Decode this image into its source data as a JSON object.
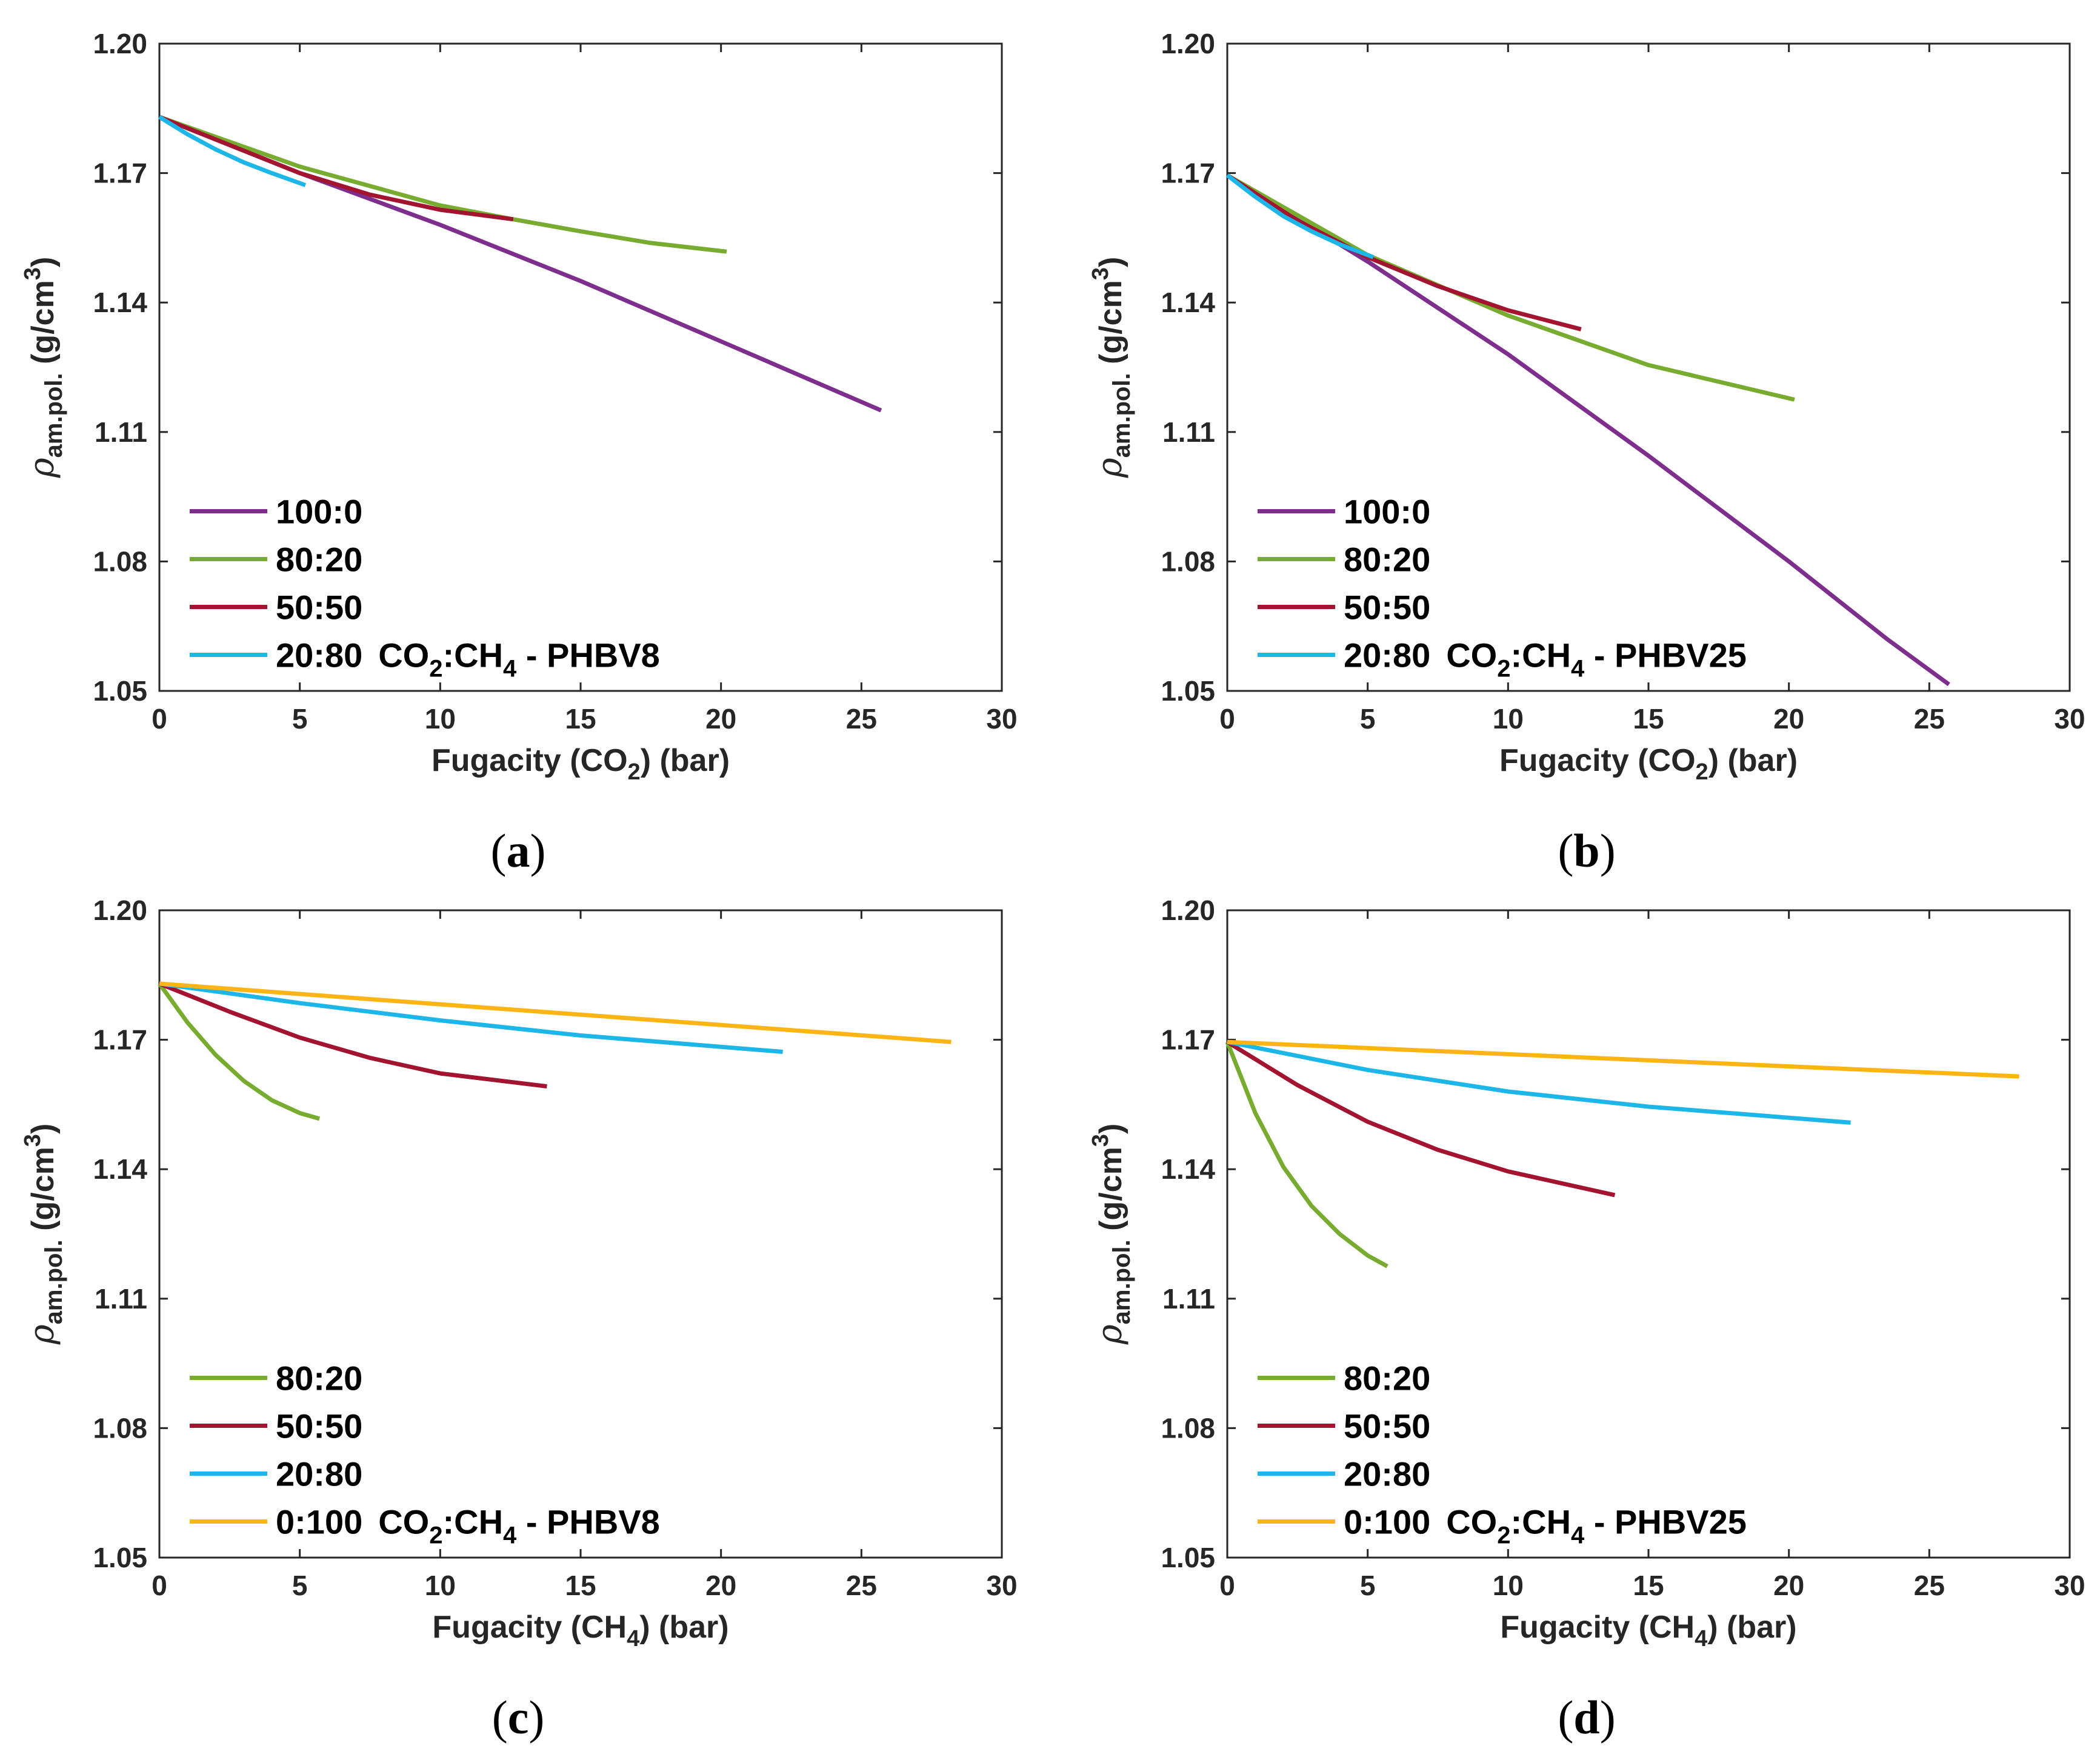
{
  "colors": {
    "purple": "#7E2F8E",
    "green": "#77AC30",
    "red": "#A2142F",
    "blue": "#1CB6E8",
    "yellow": "#FDB515"
  },
  "chart_data": [
    {
      "type": "line",
      "caption": "(a)",
      "xlabel_parts": [
        "Fugacity (CO",
        "2",
        ") (bar)"
      ],
      "ylabel_parts": [
        "ρ",
        "am.pol.",
        " (g/cm",
        "3",
        ")"
      ],
      "xlim": [
        0,
        30
      ],
      "ylim": [
        1.05,
        1.2
      ],
      "xticks": [
        "0",
        "5",
        "10",
        "15",
        "20",
        "25",
        "30"
      ],
      "yticks": [
        "1.05",
        "1.08",
        "1.11",
        "1.14",
        "1.17",
        "1.20"
      ],
      "legend_suffix_parts": [
        "CO",
        "2",
        ":CH",
        "4",
        " - PHBV8"
      ],
      "series": [
        {
          "name": "100:0",
          "color": "#7E2F8E",
          "x": [
            0,
            5,
            10,
            15,
            20,
            25.7
          ],
          "y": [
            1.183,
            1.17,
            1.158,
            1.145,
            1.131,
            1.115
          ]
        },
        {
          "name": "80:20",
          "color": "#77AC30",
          "x": [
            0,
            5,
            10,
            12.6,
            15,
            17.5,
            20.2
          ],
          "y": [
            1.183,
            1.1715,
            1.1625,
            1.1593,
            1.1565,
            1.1538,
            1.1518
          ]
        },
        {
          "name": "50:50",
          "color": "#A2142F",
          "x": [
            0,
            2.5,
            5,
            7.5,
            10,
            12.6
          ],
          "y": [
            1.183,
            1.1765,
            1.17,
            1.165,
            1.1615,
            1.1593
          ]
        },
        {
          "name": "20:80",
          "color": "#1CB6E8",
          "x": [
            0,
            1,
            2,
            3,
            4,
            5.2
          ],
          "y": [
            1.183,
            1.179,
            1.1755,
            1.1725,
            1.17,
            1.1672
          ]
        }
      ]
    },
    {
      "type": "line",
      "caption": "(b)",
      "xlabel_parts": [
        "Fugacity (CO",
        "2",
        ") (bar)"
      ],
      "ylabel_parts": [
        "ρ",
        "am.pol.",
        " (g/cm",
        "3",
        ")"
      ],
      "xlim": [
        0,
        30
      ],
      "ylim": [
        1.05,
        1.2
      ],
      "xticks": [
        "0",
        "5",
        "10",
        "15",
        "20",
        "25",
        "30"
      ],
      "yticks": [
        "1.05",
        "1.08",
        "1.11",
        "1.14",
        "1.17",
        "1.20"
      ],
      "legend_suffix_parts": [
        "CO",
        "2",
        ":CH",
        "4",
        " - PHBV25"
      ],
      "series": [
        {
          "name": "100:0",
          "color": "#7E2F8E",
          "x": [
            0,
            5,
            10,
            15,
            20,
            23.5,
            25.7
          ],
          "y": [
            1.1695,
            1.1495,
            1.128,
            1.1045,
            1.08,
            1.062,
            1.0515
          ]
        },
        {
          "name": "80:20",
          "color": "#77AC30",
          "x": [
            0,
            5,
            10,
            15,
            20.2
          ],
          "y": [
            1.1695,
            1.151,
            1.137,
            1.1255,
            1.1175
          ]
        },
        {
          "name": "50:50",
          "color": "#A2142F",
          "x": [
            0,
            2.5,
            5,
            7.5,
            10,
            12.6
          ],
          "y": [
            1.1695,
            1.159,
            1.1505,
            1.1438,
            1.1382,
            1.1338
          ]
        },
        {
          "name": "20:80",
          "color": "#1CB6E8",
          "x": [
            0,
            1,
            2,
            3,
            4,
            5.2
          ],
          "y": [
            1.1695,
            1.1645,
            1.16,
            1.1565,
            1.1535,
            1.1505
          ]
        }
      ]
    },
    {
      "type": "line",
      "caption": "(c)",
      "xlabel_parts": [
        "Fugacity (CH",
        "4",
        ") (bar)"
      ],
      "ylabel_parts": [
        "ρ",
        "am.pol.",
        " (g/cm",
        "3",
        ")"
      ],
      "xlim": [
        0,
        30
      ],
      "ylim": [
        1.05,
        1.2
      ],
      "xticks": [
        "0",
        "5",
        "10",
        "15",
        "20",
        "25",
        "30"
      ],
      "yticks": [
        "1.05",
        "1.08",
        "1.11",
        "1.14",
        "1.17",
        "1.20"
      ],
      "legend_suffix_parts": [
        "CO",
        "2",
        ":CH",
        "4",
        " - PHBV8"
      ],
      "series": [
        {
          "name": "80:20",
          "color": "#77AC30",
          "x": [
            0,
            1,
            2,
            3,
            4,
            5,
            5.7
          ],
          "y": [
            1.183,
            1.174,
            1.1665,
            1.1605,
            1.156,
            1.153,
            1.1517
          ]
        },
        {
          "name": "50:50",
          "color": "#A2142F",
          "x": [
            0,
            2.5,
            5,
            7.5,
            10,
            13.8
          ],
          "y": [
            1.183,
            1.1765,
            1.1705,
            1.1658,
            1.1622,
            1.1592
          ]
        },
        {
          "name": "20:80",
          "color": "#1CB6E8",
          "x": [
            0,
            5,
            10,
            15,
            22.2
          ],
          "y": [
            1.183,
            1.1785,
            1.1745,
            1.171,
            1.1672
          ]
        },
        {
          "name": "0:100",
          "color": "#FDB515",
          "x": [
            0,
            28.2
          ],
          "y": [
            1.183,
            1.1695
          ]
        }
      ]
    },
    {
      "type": "line",
      "caption": "(d)",
      "xlabel_parts": [
        "Fugacity (CH",
        "4",
        ") (bar)"
      ],
      "ylabel_parts": [
        "ρ",
        "am.pol.",
        " (g/cm",
        "3",
        ")"
      ],
      "xlim": [
        0,
        30
      ],
      "ylim": [
        1.05,
        1.2
      ],
      "xticks": [
        "0",
        "5",
        "10",
        "15",
        "20",
        "25",
        "30"
      ],
      "yticks": [
        "1.05",
        "1.08",
        "1.11",
        "1.14",
        "1.17",
        "1.20"
      ],
      "legend_suffix_parts": [
        "CO",
        "2",
        ":CH",
        "4",
        " - PHBV25"
      ],
      "series": [
        {
          "name": "80:20",
          "color": "#77AC30",
          "x": [
            0,
            1,
            2,
            3,
            4,
            5,
            5.7
          ],
          "y": [
            1.1695,
            1.153,
            1.1405,
            1.1315,
            1.125,
            1.12,
            1.1175
          ]
        },
        {
          "name": "50:50",
          "color": "#A2142F",
          "x": [
            0,
            2.5,
            5,
            7.5,
            10,
            13.8
          ],
          "y": [
            1.1695,
            1.1595,
            1.151,
            1.1445,
            1.1395,
            1.134
          ]
        },
        {
          "name": "20:80",
          "color": "#1CB6E8",
          "x": [
            0,
            5,
            10,
            15,
            22.2
          ],
          "y": [
            1.1695,
            1.163,
            1.158,
            1.1545,
            1.1508
          ]
        },
        {
          "name": "0:100",
          "color": "#FDB515",
          "x": [
            0,
            28.2
          ],
          "y": [
            1.1695,
            1.1615
          ]
        }
      ]
    }
  ]
}
